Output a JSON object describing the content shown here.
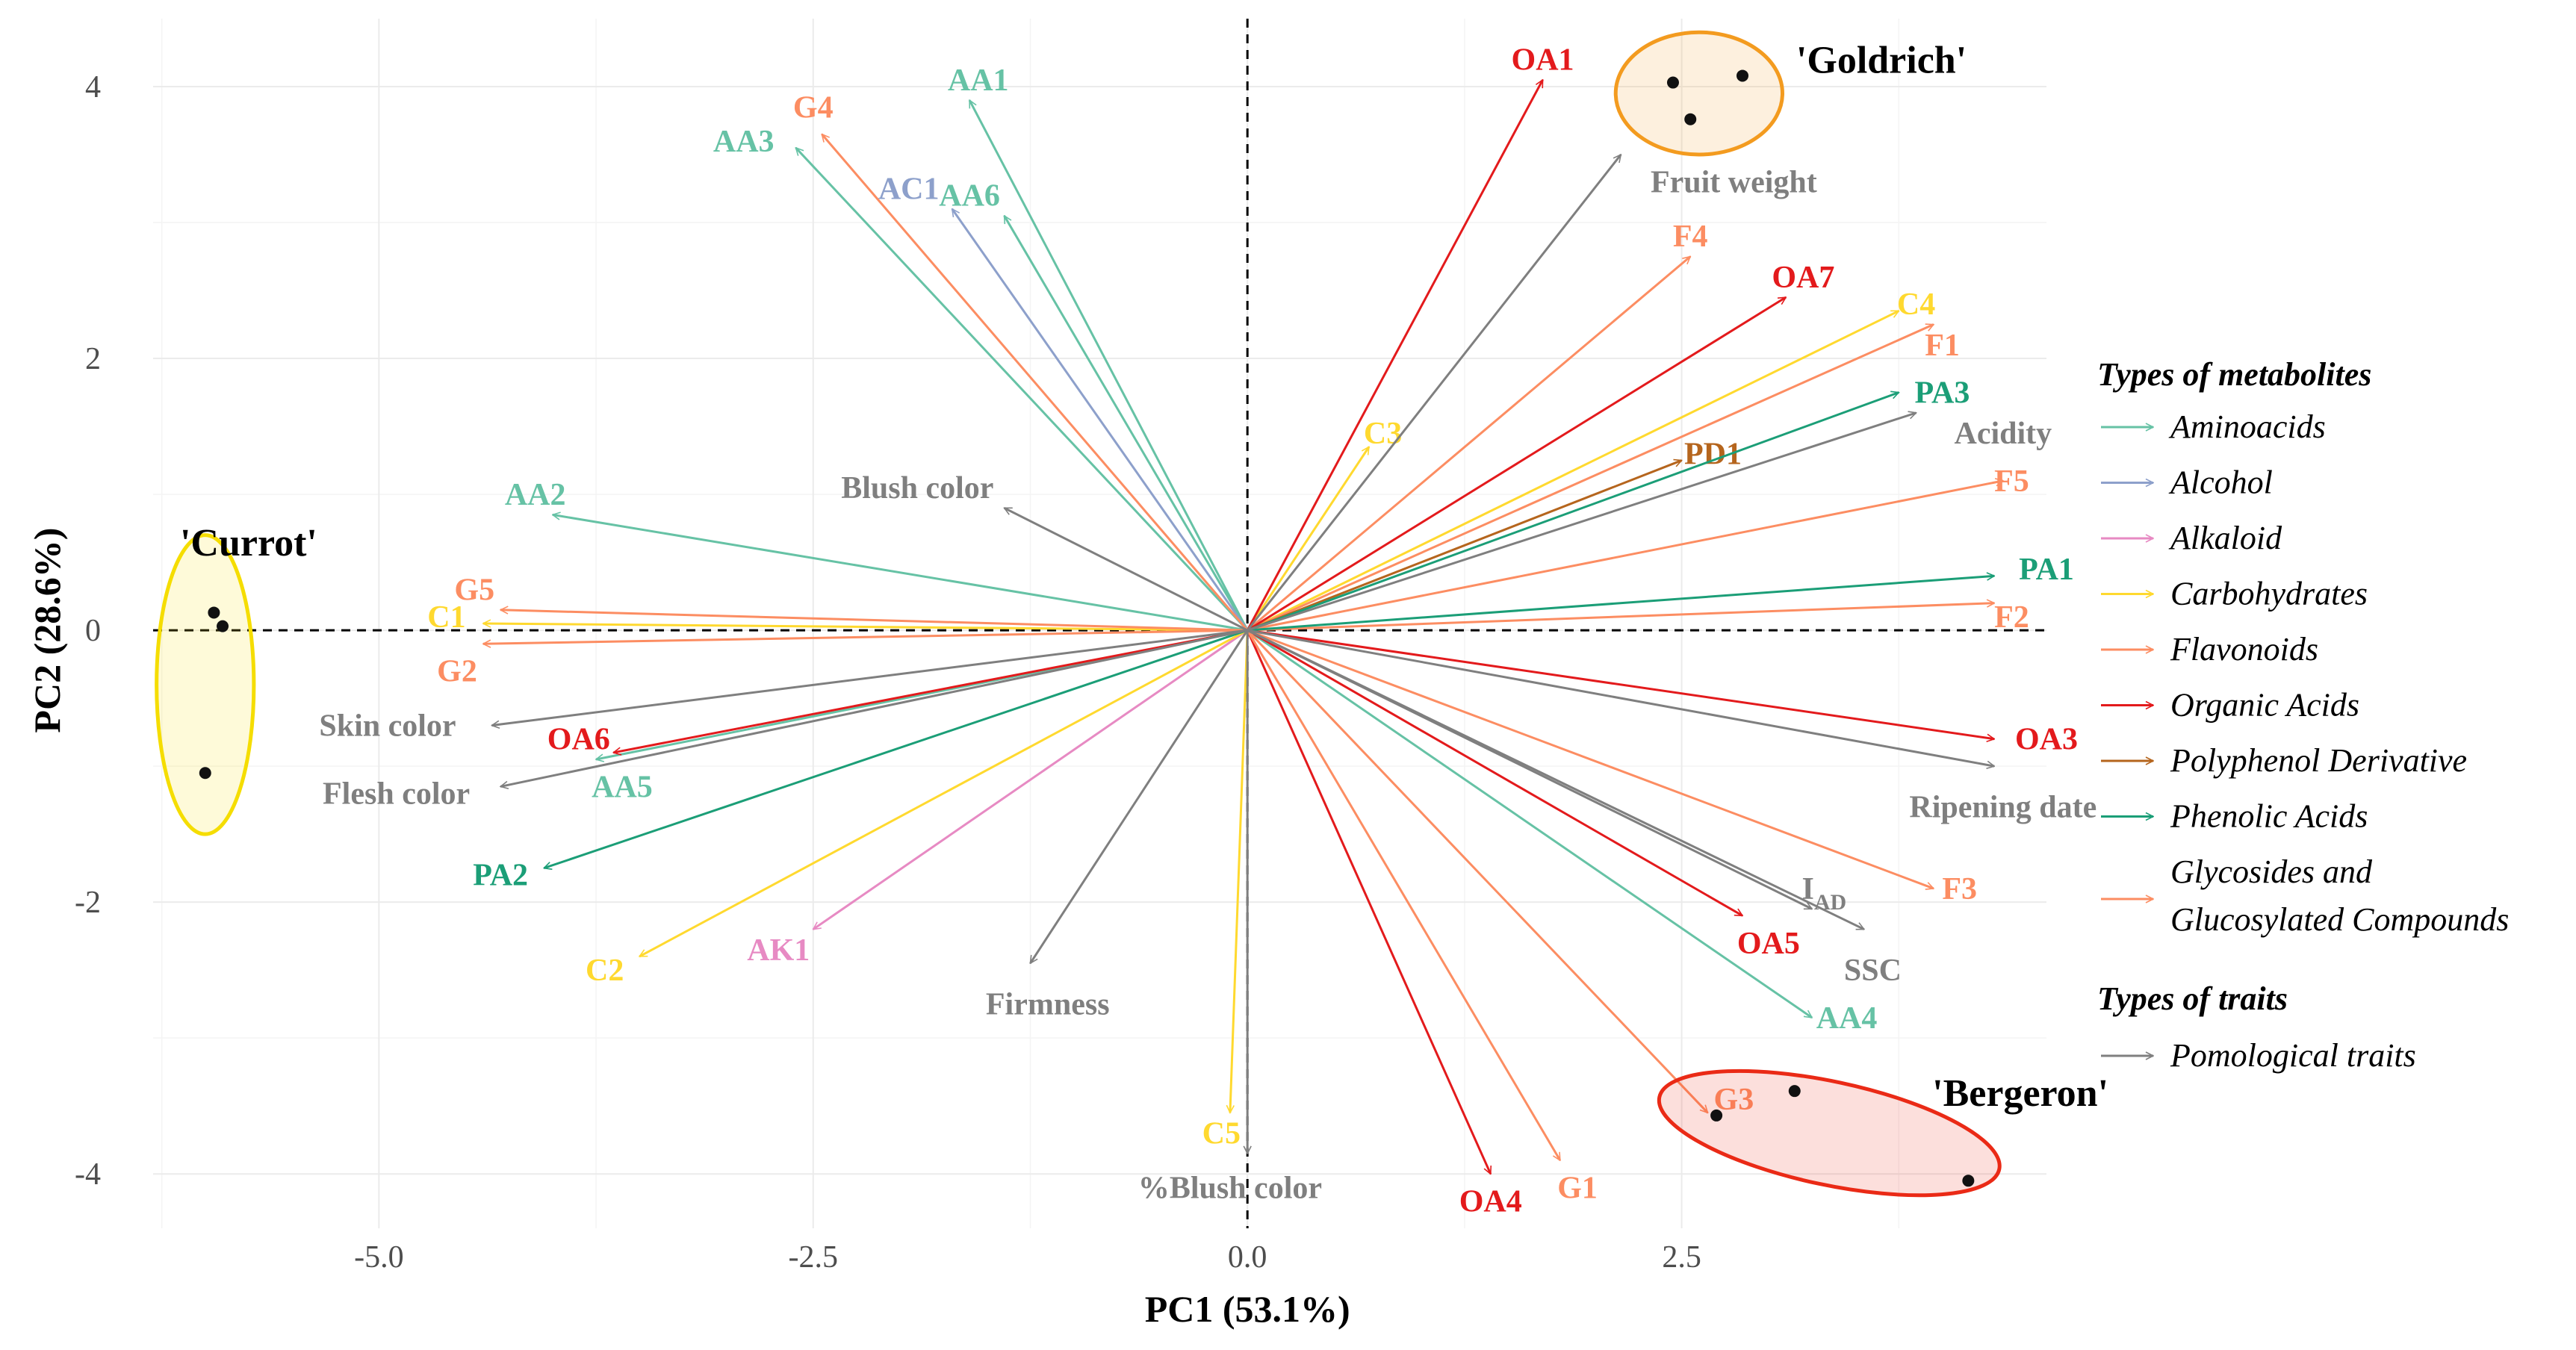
{
  "chart_data": {
    "type": "biplot",
    "xlabel": "PC1 (53.1%)",
    "ylabel": "PC2 (28.6%)",
    "xlim": [
      -6.3,
      4.6
    ],
    "ylim": [
      -4.4,
      4.5
    ],
    "xticks": [
      {
        "v": -5,
        "label": "-5.0"
      },
      {
        "v": -2.5,
        "label": "-2.5"
      },
      {
        "v": 0,
        "label": "0.0"
      },
      {
        "v": 2.5,
        "label": "2.5"
      }
    ],
    "yticks": [
      {
        "v": 4,
        "label": "4"
      },
      {
        "v": 2,
        "label": "2"
      },
      {
        "v": 0,
        "label": "0"
      },
      {
        "v": -2,
        "label": "-2"
      },
      {
        "v": -4,
        "label": "-4"
      }
    ],
    "grid": true,
    "legend_position": "right",
    "colors": {
      "Aminoacids": "#66c2a5",
      "Alcohol": "#8da0cb",
      "Alkaloid": "#e78ac3",
      "Carbohydrates": "#ffd92f",
      "Flavonoids": "#fc8d62",
      "Organic Acids": "#e31a1c",
      "Polyphenol Derivative": "#b5651d",
      "Phenolic Acids": "#1b9e77",
      "Glycosides": "#fc8d62",
      "Pomological traits": "#7f7f7f",
      "Currot": "#f5dd00",
      "Goldrich": "#f39b1f",
      "Bergeron": "#ea2a16"
    },
    "legend": {
      "metabolites_title": "Types of metabolites",
      "traits_title": "Types of traits",
      "items": [
        {
          "group": "Aminoacids",
          "label": "Aminoacids"
        },
        {
          "group": "Alcohol",
          "label": "Alcohol"
        },
        {
          "group": "Alkaloid",
          "label": "Alkaloid"
        },
        {
          "group": "Carbohydrates",
          "label": "Carbohydrates"
        },
        {
          "group": "Flavonoids",
          "label": "Flavonoids"
        },
        {
          "group": "Organic Acids",
          "label": "Organic Acids"
        },
        {
          "group": "Polyphenol Derivative",
          "label": "Polyphenol Derivative"
        },
        {
          "group": "Phenolic Acids",
          "label": "Phenolic Acids"
        },
        {
          "group": "Glycosides",
          "label": "Glycosides and",
          "label2": "Glucosylated Compounds"
        }
      ],
      "trait_items": [
        {
          "group": "Pomological traits",
          "label": "Pomological traits"
        }
      ]
    },
    "vectors": [
      {
        "name": "AA1",
        "group": "Aminoacids",
        "x": -1.6,
        "y": 3.9,
        "lx": -1.55,
        "ly": 4.05,
        "anchor": "middle"
      },
      {
        "name": "AA3",
        "group": "Aminoacids",
        "x": -2.6,
        "y": 3.55,
        "lx": -2.9,
        "ly": 3.6,
        "anchor": "middle"
      },
      {
        "name": "AA6",
        "group": "Aminoacids",
        "x": -1.4,
        "y": 3.05,
        "lx": -1.6,
        "ly": 3.2,
        "anchor": "middle"
      },
      {
        "name": "AA2",
        "group": "Aminoacids",
        "x": -4.0,
        "y": 0.85,
        "lx": -4.1,
        "ly": 1.0,
        "anchor": "middle"
      },
      {
        "name": "AA5",
        "group": "Aminoacids",
        "x": -3.75,
        "y": -0.95,
        "lx": -3.6,
        "ly": -1.15,
        "anchor": "middle"
      },
      {
        "name": "AA4",
        "group": "Aminoacids",
        "x": 3.25,
        "y": -2.85,
        "lx": 3.45,
        "ly": -2.85,
        "anchor": "middle"
      },
      {
        "name": "AC1",
        "group": "Alcohol",
        "x": -1.7,
        "y": 3.1,
        "lx": -1.95,
        "ly": 3.25,
        "anchor": "middle"
      },
      {
        "name": "AK1",
        "group": "Alkaloid",
        "x": -2.5,
        "y": -2.2,
        "lx": -2.7,
        "ly": -2.35,
        "anchor": "middle"
      },
      {
        "name": "C1",
        "group": "Carbohydrates",
        "x": -4.4,
        "y": 0.05,
        "lx": -4.5,
        "ly": 0.1,
        "anchor": "end"
      },
      {
        "name": "C2",
        "group": "Carbohydrates",
        "x": -3.5,
        "y": -2.4,
        "lx": -3.7,
        "ly": -2.5,
        "anchor": "middle"
      },
      {
        "name": "C3",
        "group": "Carbohydrates",
        "x": 0.7,
        "y": 1.35,
        "lx": 0.78,
        "ly": 1.45,
        "anchor": "middle"
      },
      {
        "name": "C4",
        "group": "Carbohydrates",
        "x": 3.75,
        "y": 2.35,
        "lx": 3.85,
        "ly": 2.4,
        "anchor": "middle"
      },
      {
        "name": "C5",
        "group": "Carbohydrates",
        "x": -0.1,
        "y": -3.55,
        "lx": -0.15,
        "ly": -3.7,
        "anchor": "middle"
      },
      {
        "name": "F1",
        "group": "Flavonoids",
        "x": 3.95,
        "y": 2.25,
        "lx": 3.9,
        "ly": 2.1,
        "anchor": "start"
      },
      {
        "name": "F2",
        "group": "Flavonoids",
        "x": 4.3,
        "y": 0.2,
        "lx": 4.4,
        "ly": 0.1,
        "anchor": "middle"
      },
      {
        "name": "F3",
        "group": "Flavonoids",
        "x": 3.95,
        "y": -1.9,
        "lx": 4.1,
        "ly": -1.9,
        "anchor": "middle"
      },
      {
        "name": "F4",
        "group": "Flavonoids",
        "x": 2.55,
        "y": 2.75,
        "lx": 2.55,
        "ly": 2.9,
        "anchor": "middle"
      },
      {
        "name": "F5",
        "group": "Flavonoids",
        "x": 4.35,
        "y": 1.1,
        "lx": 4.4,
        "ly": 1.1,
        "anchor": "middle"
      },
      {
        "name": "OA1",
        "group": "Organic Acids",
        "x": 1.7,
        "y": 4.05,
        "lx": 1.7,
        "ly": 4.2,
        "anchor": "middle"
      },
      {
        "name": "OA3",
        "group": "Organic Acids",
        "x": 4.3,
        "y": -0.8,
        "lx": 4.6,
        "ly": -0.8,
        "anchor": "middle"
      },
      {
        "name": "OA4",
        "group": "Organic Acids",
        "x": 1.4,
        "y": -4.0,
        "lx": 1.4,
        "ly": -4.2,
        "anchor": "middle"
      },
      {
        "name": "OA5",
        "group": "Organic Acids",
        "x": 2.85,
        "y": -2.1,
        "lx": 3.0,
        "ly": -2.3,
        "anchor": "middle"
      },
      {
        "name": "OA6",
        "group": "Organic Acids",
        "x": -3.65,
        "y": -0.9,
        "lx": -3.85,
        "ly": -0.8,
        "anchor": "middle"
      },
      {
        "name": "OA7",
        "group": "Organic Acids",
        "x": 3.1,
        "y": 2.45,
        "lx": 3.2,
        "ly": 2.6,
        "anchor": "middle"
      },
      {
        "name": "PD1",
        "group": "Polyphenol Derivative",
        "x": 2.5,
        "y": 1.25,
        "lx": 2.68,
        "ly": 1.3,
        "anchor": "middle"
      },
      {
        "name": "PA1",
        "group": "Phenolic Acids",
        "x": 4.3,
        "y": 0.4,
        "lx": 4.6,
        "ly": 0.45,
        "anchor": "middle"
      },
      {
        "name": "PA2",
        "group": "Phenolic Acids",
        "x": -4.05,
        "y": -1.75,
        "lx": -4.3,
        "ly": -1.8,
        "anchor": "middle"
      },
      {
        "name": "PA3",
        "group": "Phenolic Acids",
        "x": 3.75,
        "y": 1.75,
        "lx": 4.0,
        "ly": 1.75,
        "anchor": "middle"
      },
      {
        "name": "G1",
        "group": "Glycosides",
        "x": 1.8,
        "y": -3.9,
        "lx": 1.9,
        "ly": -4.1,
        "anchor": "middle"
      },
      {
        "name": "G2",
        "group": "Glycosides",
        "x": -4.4,
        "y": -0.1,
        "lx": -4.55,
        "ly": -0.3,
        "anchor": "middle"
      },
      {
        "name": "G3",
        "group": "Glycosides",
        "x": 2.65,
        "y": -3.55,
        "lx": 2.8,
        "ly": -3.45,
        "anchor": "middle"
      },
      {
        "name": "G4",
        "group": "Glycosides",
        "x": -2.45,
        "y": 3.65,
        "lx": -2.5,
        "ly": 3.85,
        "anchor": "middle"
      },
      {
        "name": "G5",
        "group": "Glycosides",
        "x": -4.3,
        "y": 0.15,
        "lx": -4.45,
        "ly": 0.3,
        "anchor": "middle"
      },
      {
        "name": "Fruit weight",
        "group": "Pomological traits",
        "x": 2.15,
        "y": 3.5,
        "lx": 2.8,
        "ly": 3.3,
        "anchor": "middle"
      },
      {
        "name": "Acidity",
        "group": "Pomological traits",
        "x": 3.85,
        "y": 1.6,
        "lx": 4.35,
        "ly": 1.45,
        "anchor": "middle"
      },
      {
        "name": "Blush color",
        "group": "Pomological traits",
        "x": -1.4,
        "y": 0.9,
        "lx": -1.9,
        "ly": 1.05,
        "anchor": "middle"
      },
      {
        "name": "Skin color",
        "group": "Pomological traits",
        "x": -4.35,
        "y": -0.7,
        "lx": -4.95,
        "ly": -0.7,
        "anchor": "middle"
      },
      {
        "name": "Flesh color",
        "group": "Pomological traits",
        "x": -4.3,
        "y": -1.15,
        "lx": -4.9,
        "ly": -1.2,
        "anchor": "middle"
      },
      {
        "name": "Firmness",
        "group": "Pomological traits",
        "x": -1.25,
        "y": -2.45,
        "lx": -1.15,
        "ly": -2.75,
        "anchor": "middle"
      },
      {
        "name": "%Blush color",
        "group": "Pomological traits",
        "x": 0.0,
        "y": -3.85,
        "lx": -0.1,
        "ly": -4.1,
        "anchor": "middle"
      },
      {
        "name": "Ripening date",
        "group": "Pomological traits",
        "x": 4.3,
        "y": -1.0,
        "lx": 4.35,
        "ly": -1.3,
        "anchor": "middle"
      },
      {
        "name": "IAD",
        "group": "Pomological traits",
        "x": 3.25,
        "y": -2.05,
        "lx": 3.32,
        "ly": -1.9,
        "anchor": "middle",
        "sub": "AD",
        "main": "I"
      },
      {
        "name": "SSC",
        "group": "Pomological traits",
        "x": 3.55,
        "y": -2.2,
        "lx": 3.6,
        "ly": -2.5,
        "anchor": "middle"
      }
    ],
    "groups": [
      {
        "name": "'Currot'",
        "color_key": "Currot",
        "cx": -6.0,
        "cy": -0.4,
        "rx": 0.28,
        "ry": 1.1,
        "angle": 0,
        "lx": -5.75,
        "ly": 0.65,
        "anchor": "middle",
        "points": [
          {
            "x": -5.95,
            "y": 0.13
          },
          {
            "x": -5.9,
            "y": 0.03
          },
          {
            "x": -6.0,
            "y": -1.05
          }
        ]
      },
      {
        "name": "'Goldrich'",
        "color_key": "Goldrich",
        "cx": 2.6,
        "cy": 3.95,
        "rx": 0.48,
        "ry": 0.45,
        "angle": 0,
        "lx": 3.65,
        "ly": 4.2,
        "anchor": "middle",
        "points": [
          {
            "x": 2.45,
            "y": 4.03
          },
          {
            "x": 2.85,
            "y": 4.08
          },
          {
            "x": 2.55,
            "y": 3.76
          }
        ]
      },
      {
        "name": "'Bergeron'",
        "color_key": "Bergeron",
        "cx": 3.35,
        "cy": -3.7,
        "rx": 1.0,
        "ry": 0.38,
        "angle": 12,
        "lx": 4.45,
        "ly": -3.4,
        "anchor": "middle",
        "points": [
          {
            "x": 2.7,
            "y": -3.57
          },
          {
            "x": 3.15,
            "y": -3.39
          },
          {
            "x": 4.15,
            "y": -4.05
          }
        ]
      }
    ]
  }
}
